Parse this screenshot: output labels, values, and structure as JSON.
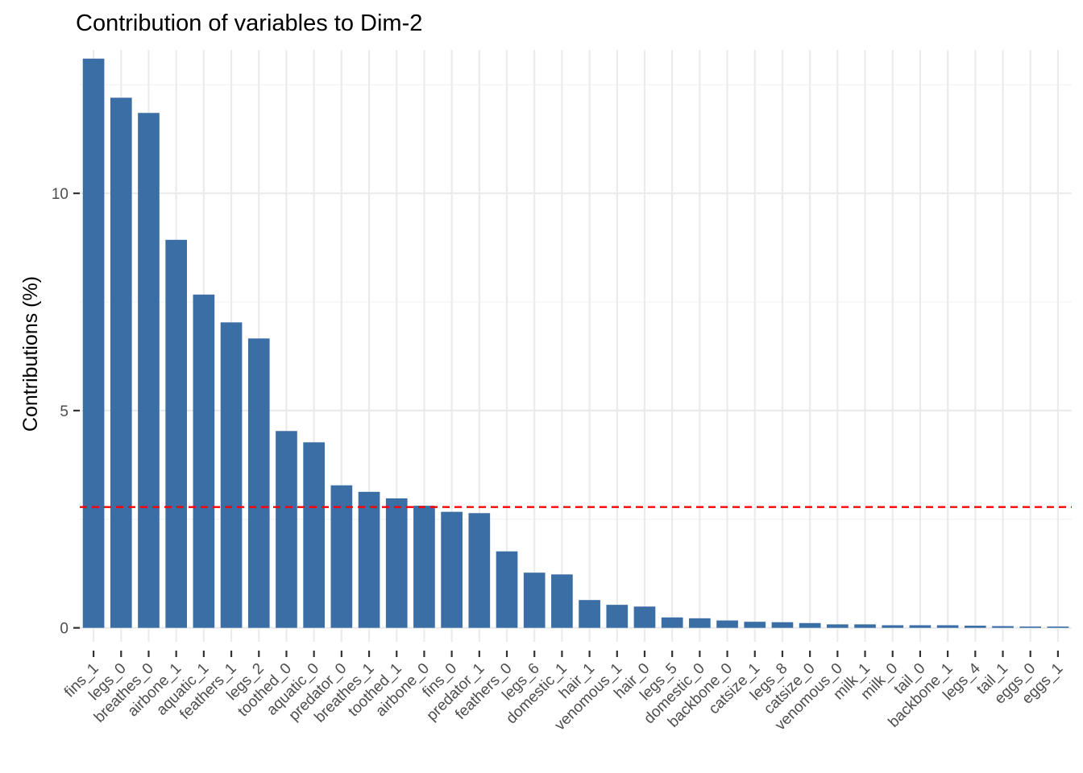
{
  "chart_data": {
    "type": "bar",
    "title": "Contribution of variables to Dim-2",
    "xlabel": "",
    "ylabel": "Contributions (%)",
    "ylim": [
      -0.32,
      13.3
    ],
    "yticks": [
      0,
      5,
      10
    ],
    "grid": true,
    "bar_color": "#3a6ea5",
    "reference_line": {
      "value": 2.78,
      "color": "#ff0000",
      "style": "dashed"
    },
    "categories": [
      "fins_1",
      "legs_0",
      "breathes_0",
      "airbone_1",
      "aquatic_1",
      "feathers_1",
      "legs_2",
      "toothed_0",
      "aquatic_0",
      "predator_0",
      "breathes_1",
      "toothed_1",
      "airbone_0",
      "fins_0",
      "predator_1",
      "feathers_0",
      "legs_6",
      "domestic_1",
      "hair_1",
      "venomous_1",
      "hair_0",
      "legs_5",
      "domestic_0",
      "backbone_0",
      "catsize_1",
      "legs_8",
      "catsize_0",
      "venomous_0",
      "milk_1",
      "milk_0",
      "tail_0",
      "backbone_1",
      "legs_4",
      "tail_1",
      "eggs_0",
      "eggs_1"
    ],
    "values": [
      13.1,
      12.2,
      11.85,
      8.93,
      7.67,
      7.03,
      6.66,
      4.53,
      4.27,
      3.28,
      3.13,
      2.98,
      2.81,
      2.67,
      2.64,
      1.76,
      1.27,
      1.23,
      0.64,
      0.53,
      0.49,
      0.24,
      0.22,
      0.17,
      0.14,
      0.13,
      0.11,
      0.08,
      0.08,
      0.06,
      0.06,
      0.06,
      0.05,
      0.04,
      0.03,
      0.03
    ]
  }
}
